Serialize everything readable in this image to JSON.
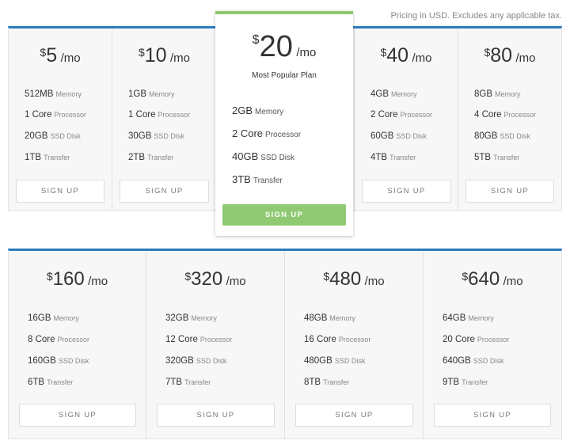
{
  "header": {
    "note": "Pricing in USD. Excludes any applicable tax."
  },
  "labels": {
    "memory": "Memory",
    "processor": "Processor",
    "disk": "SSD Disk",
    "transfer": "Transfer"
  },
  "colors": {
    "accent_blue": "#2b7bbf",
    "accent_green": "#8fca72"
  },
  "plans_row1": [
    {
      "currency": "$",
      "amount": "5",
      "per": "/mo",
      "memory": "512MB",
      "processor": "1 Core",
      "disk": "20GB",
      "transfer": "1TB",
      "button": "SIGN UP"
    },
    {
      "currency": "$",
      "amount": "10",
      "per": "/mo",
      "memory": "1GB",
      "processor": "1 Core",
      "disk": "30GB",
      "transfer": "2TB",
      "button": "SIGN UP"
    },
    {
      "currency": "$",
      "amount": "40",
      "per": "/mo",
      "memory": "4GB",
      "processor": "2 Core",
      "disk": "60GB",
      "transfer": "4TB",
      "button": "SIGN UP"
    },
    {
      "currency": "$",
      "amount": "80",
      "per": "/mo",
      "memory": "8GB",
      "processor": "4 Core",
      "disk": "80GB",
      "transfer": "5TB",
      "button": "SIGN UP"
    }
  ],
  "featured": {
    "currency": "$",
    "amount": "20",
    "per": "/mo",
    "tagline": "Most Popular Plan",
    "memory": "2GB",
    "processor": "2 Core",
    "disk": "40GB",
    "transfer": "3TB",
    "button": "SIGN UP"
  },
  "plans_row2": [
    {
      "currency": "$",
      "amount": "160",
      "per": "/mo",
      "memory": "16GB",
      "processor": "8 Core",
      "disk": "160GB",
      "transfer": "6TB",
      "button": "SIGN UP"
    },
    {
      "currency": "$",
      "amount": "320",
      "per": "/mo",
      "memory": "32GB",
      "processor": "12 Core",
      "disk": "320GB",
      "transfer": "7TB",
      "button": "SIGN UP"
    },
    {
      "currency": "$",
      "amount": "480",
      "per": "/mo",
      "memory": "48GB",
      "processor": "16 Core",
      "disk": "480GB",
      "transfer": "8TB",
      "button": "SIGN UP"
    },
    {
      "currency": "$",
      "amount": "640",
      "per": "/mo",
      "memory": "64GB",
      "processor": "20 Core",
      "disk": "640GB",
      "transfer": "9TB",
      "button": "SIGN UP"
    }
  ]
}
